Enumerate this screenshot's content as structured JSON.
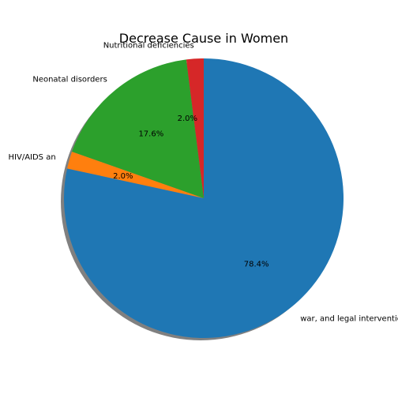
{
  "chart_data": {
    "type": "pie",
    "title": "Decrease Cause in Women",
    "slices": [
      {
        "label": "Nutritional deficiencies",
        "value": 2.0,
        "pct_label": "2.0%",
        "color": "#d62728"
      },
      {
        "label": "Neonatal disorders",
        "value": 17.6,
        "pct_label": "17.6%",
        "color": "#2ca02c"
      },
      {
        "label": "HIV/AIDS an",
        "value": 2.0,
        "pct_label": "2.0%",
        "color": "#ff7f0e"
      },
      {
        "label": "war, and legal intervention",
        "value": 78.4,
        "pct_label": "78.4%",
        "color": "#1f77b4"
      }
    ],
    "shadow": true,
    "start_angle": "top, counter-clockwise"
  }
}
